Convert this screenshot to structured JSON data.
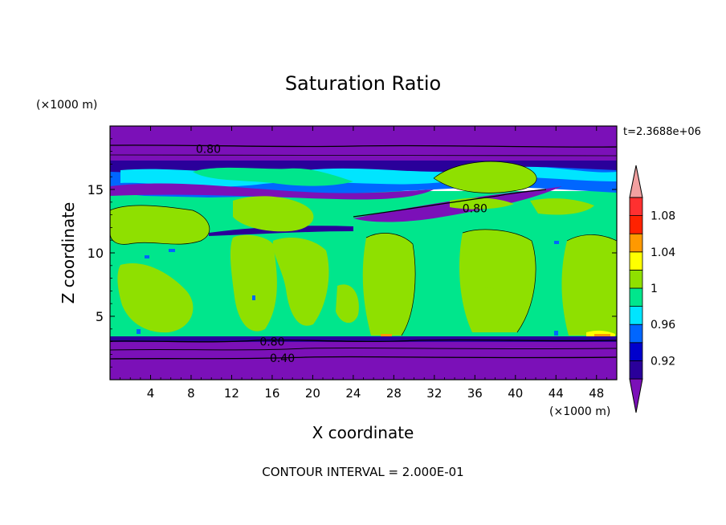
{
  "chart_data": {
    "type": "heatmap",
    "title": "Saturation Ratio",
    "xlabel": "X coordinate",
    "ylabel": "Z coordinate",
    "x_unit": "(×1000 m)",
    "y_unit": "(×1000 m)",
    "time_label": "t=2.3688e+06",
    "footer": "CONTOUR INTERVAL = 2.000E-01",
    "xlim": [
      0,
      50
    ],
    "ylim": [
      0,
      20
    ],
    "x_ticks": [
      4,
      8,
      12,
      16,
      20,
      24,
      28,
      32,
      36,
      40,
      44,
      48
    ],
    "y_ticks": [
      5,
      10,
      15
    ],
    "grid": false,
    "colorbar": {
      "levels": [
        0.9,
        0.92,
        0.94,
        0.96,
        0.98,
        1.0,
        1.02,
        1.04,
        1.06,
        1.08,
        1.1
      ],
      "tick_labels": [
        "0.92",
        "0.96",
        "1",
        "1.04",
        "1.08"
      ],
      "tick_values": [
        0.92,
        0.96,
        1.0,
        1.04,
        1.08
      ],
      "colors": [
        "#7b10b8",
        "#2a009a",
        "#0000cc",
        "#0066ff",
        "#00e5ff",
        "#00e68c",
        "#8fe000",
        "#ffff00",
        "#ff9900",
        "#ff2200",
        "#ff3030",
        "#f2a0a0"
      ],
      "under_color": "#7b10b8",
      "over_color": "#f2a0a0"
    },
    "contours": [
      {
        "label": "0.80",
        "level": 0.8,
        "label_x": 9.7,
        "label_y": 18.2
      },
      {
        "label": "0.80",
        "level": 0.8,
        "label_x": 36.0,
        "label_y": 13.5
      },
      {
        "label": "0.80",
        "level": 0.8,
        "label_x": 16.0,
        "label_y": 3.0
      },
      {
        "label": "0.40",
        "level": 0.4,
        "label_x": 17.0,
        "label_y": 1.7
      }
    ],
    "bands": [
      {
        "z_range": [
          0,
          3.3
        ],
        "value": 0.88
      },
      {
        "z_range": [
          3.3,
          11.0
        ],
        "value": 0.99
      },
      {
        "z_range": [
          11.0,
          16.5
        ],
        "value": 0.97
      },
      {
        "z_range": [
          16.5,
          20
        ],
        "value": 0.88
      }
    ],
    "regions": [
      {
        "x": [
          0,
          50
        ],
        "z": [
          3.3,
          11.0
        ],
        "value": 0.99
      },
      {
        "x": [
          10,
          13
        ],
        "z": [
          3.6,
          9.8
        ],
        "value": 1.01
      },
      {
        "x": [
          18,
          21
        ],
        "z": [
          4.5,
          9.0
        ],
        "value": 1.01
      },
      {
        "x": [
          25,
          29
        ],
        "z": [
          4.0,
          10.8
        ],
        "value": 1.01
      },
      {
        "x": [
          35,
          39
        ],
        "z": [
          4.0,
          10.5
        ],
        "value": 1.01
      },
      {
        "x": [
          46,
          50
        ],
        "z": [
          4.0,
          10.8
        ],
        "value": 1.01
      },
      {
        "x": [
          34,
          42
        ],
        "z": [
          14.5,
          17.2
        ],
        "value": 1.01
      },
      {
        "x": [
          0,
          50
        ],
        "z": [
          15.5,
          17.5
        ],
        "value": 0.95
      },
      {
        "x": [
          5,
          30
        ],
        "z": [
          14.5,
          16.5
        ],
        "value": 0.9
      },
      {
        "x": [
          24,
          37
        ],
        "z": [
          12.2,
          14.2
        ],
        "value": 0.9
      }
    ]
  }
}
